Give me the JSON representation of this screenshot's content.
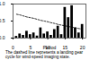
{
  "chart_data": {
    "type": "bar",
    "x": [
      1,
      2,
      3,
      4,
      5,
      6,
      7,
      8,
      9,
      10,
      11,
      12,
      13,
      14,
      15,
      16,
      17,
      18,
      19,
      20
    ],
    "series": [
      {
        "type": "bar",
        "color": "#000000",
        "values": [
          0.05,
          0.12,
          0.08,
          0.2,
          0.1,
          0.15,
          0.06,
          0.3,
          0.12,
          0.18,
          0.08,
          0.25,
          0.35,
          0.1,
          0.9,
          0.6,
          0.95,
          0.3,
          0.15,
          0.4
        ]
      },
      {
        "type": "line",
        "line_style": "dashed",
        "color": "#000000",
        "values": [
          0.7,
          0.68,
          0.65,
          0.62,
          0.6,
          0.58,
          0.55,
          0.52,
          0.5,
          0.48,
          0.45,
          0.43,
          0.4,
          0.38,
          0.36,
          0.34,
          0.32,
          0.3,
          0.28,
          0.26
        ]
      }
    ],
    "xlabel": "Period",
    "xlim": [
      0,
      21
    ],
    "xticks": [
      0,
      5,
      10,
      15,
      20
    ],
    "ylim": [
      0,
      1
    ],
    "yticks": [
      0,
      0.5,
      1
    ],
    "caption": "The dashed line represents a landing gear cycle for wind-speed imaging state."
  }
}
